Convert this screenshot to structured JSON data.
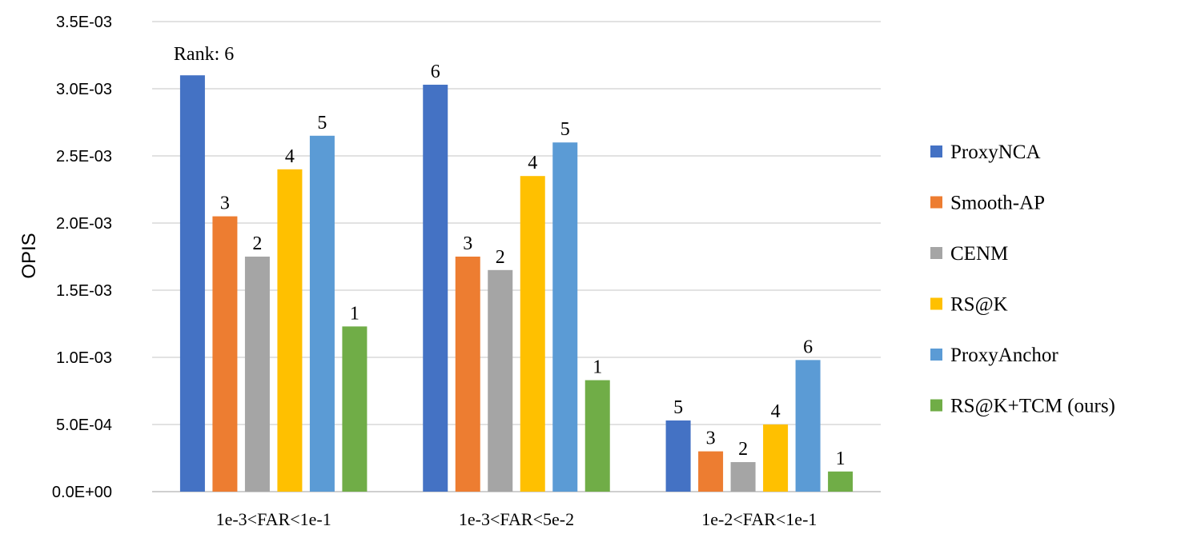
{
  "chart_data": {
    "type": "bar",
    "title": "",
    "xlabel": "",
    "ylabel": "OPIS",
    "ylim": [
      0,
      0.0035
    ],
    "yticks": [
      0,
      0.0005,
      0.001,
      0.0015,
      0.002,
      0.0025,
      0.003,
      0.0035
    ],
    "ytick_labels": [
      "0.0E+00",
      "5.0E-04",
      "1.0E-03",
      "1.5E-03",
      "2.0E-03",
      "2.5E-03",
      "3.0E-03",
      "3.5E-03"
    ],
    "grid": true,
    "legend_position": "right",
    "categories": [
      "1e-3<FAR<1e-1",
      "1e-3<FAR<5e-2",
      "1e-2<FAR<1e-1"
    ],
    "series": [
      {
        "name": "ProxyNCA",
        "color": "#4472c4",
        "values": [
          0.0031,
          0.00303,
          0.00053
        ],
        "labels": [
          "Rank: 6",
          "6",
          "5"
        ]
      },
      {
        "name": "Smooth-AP",
        "color": "#ed7d31",
        "values": [
          0.00205,
          0.00175,
          0.0003
        ],
        "labels": [
          "3",
          "3",
          "3"
        ]
      },
      {
        "name": "CENM",
        "color": "#a5a5a5",
        "values": [
          0.00175,
          0.00165,
          0.00022
        ],
        "labels": [
          "2",
          "2",
          "2"
        ]
      },
      {
        "name": "RS@K",
        "color": "#ffc000",
        "values": [
          0.0024,
          0.00235,
          0.0005
        ],
        "labels": [
          "4",
          "4",
          "4"
        ]
      },
      {
        "name": "ProxyAnchor",
        "color": "#5b9bd5",
        "values": [
          0.00265,
          0.0026,
          0.00098
        ],
        "labels": [
          "5",
          "5",
          "6"
        ]
      },
      {
        "name": "RS@K+TCM (ours)",
        "color": "#70ad47",
        "values": [
          0.00123,
          0.00083,
          0.00015
        ],
        "labels": [
          "1",
          "1",
          "1"
        ]
      }
    ]
  }
}
